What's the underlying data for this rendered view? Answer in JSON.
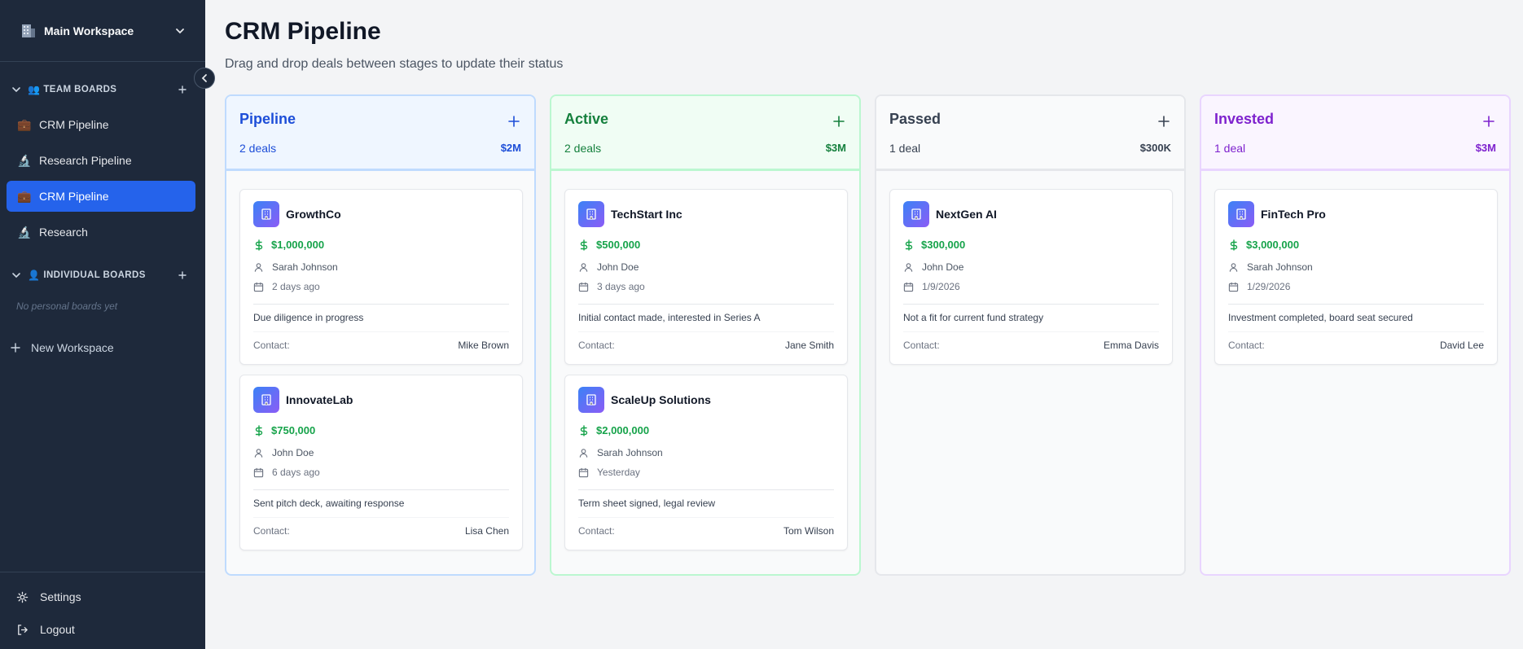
{
  "sidebar": {
    "workspace": {
      "icon": "building-icon",
      "name": "Main Workspace"
    },
    "team_section": {
      "emoji": "👥",
      "label": "TEAM BOARDS"
    },
    "team_items": [
      {
        "label": "CRM Pipeline",
        "emoji": "💼",
        "active": false
      },
      {
        "label": "Research Pipeline",
        "emoji": "🔬",
        "active": false
      },
      {
        "label": "CRM Pipeline",
        "emoji": "💼",
        "active": true
      },
      {
        "label": "Research",
        "emoji": "🔬",
        "active": false
      }
    ],
    "individual_section": {
      "emoji": "👤",
      "label": "INDIVIDUAL BOARDS"
    },
    "empty_note": "No personal boards yet",
    "new_workspace": "New Workspace",
    "settings": "Settings",
    "logout": "Logout"
  },
  "header": {
    "title": "CRM Pipeline",
    "subtitle": "Drag and drop deals between stages to update their status"
  },
  "columns": [
    {
      "title": "Pipeline",
      "count": "2 deals",
      "total": "$2M",
      "deals": [
        {
          "name": "GrowthCo",
          "amount": "$1,000,000",
          "owner": "Sarah Johnson",
          "date": "2 days ago",
          "note": "Due diligence in progress",
          "contact_label": "Contact:",
          "contact": "Mike Brown"
        },
        {
          "name": "InnovateLab",
          "amount": "$750,000",
          "owner": "John Doe",
          "date": "6 days ago",
          "note": "Sent pitch deck, awaiting response",
          "contact_label": "Contact:",
          "contact": "Lisa Chen"
        }
      ]
    },
    {
      "title": "Active",
      "count": "2 deals",
      "total": "$3M",
      "deals": [
        {
          "name": "TechStart Inc",
          "amount": "$500,000",
          "owner": "John Doe",
          "date": "3 days ago",
          "note": "Initial contact made, interested in Series A",
          "contact_label": "Contact:",
          "contact": "Jane Smith"
        },
        {
          "name": "ScaleUp Solutions",
          "amount": "$2,000,000",
          "owner": "Sarah Johnson",
          "date": "Yesterday",
          "note": "Term sheet signed, legal review",
          "contact_label": "Contact:",
          "contact": "Tom Wilson"
        }
      ]
    },
    {
      "title": "Passed",
      "count": "1 deal",
      "total": "$300K",
      "deals": [
        {
          "name": "NextGen AI",
          "amount": "$300,000",
          "owner": "John Doe",
          "date": "1/9/2026",
          "note": "Not a fit for current fund strategy",
          "contact_label": "Contact:",
          "contact": "Emma Davis"
        }
      ]
    },
    {
      "title": "Invested",
      "count": "1 deal",
      "total": "$3M",
      "deals": [
        {
          "name": "FinTech Pro",
          "amount": "$3,000,000",
          "owner": "Sarah Johnson",
          "date": "1/29/2026",
          "note": "Investment completed, board seat secured",
          "contact_label": "Contact:",
          "contact": "David Lee"
        }
      ]
    }
  ],
  "colors": {
    "sidebar_bg": "#1e293b",
    "active_nav": "#2563eb",
    "pipeline": "#1d4ed8",
    "active": "#15803d",
    "passed": "#374151",
    "invested": "#7e22ce",
    "amount": "#16a34a"
  }
}
